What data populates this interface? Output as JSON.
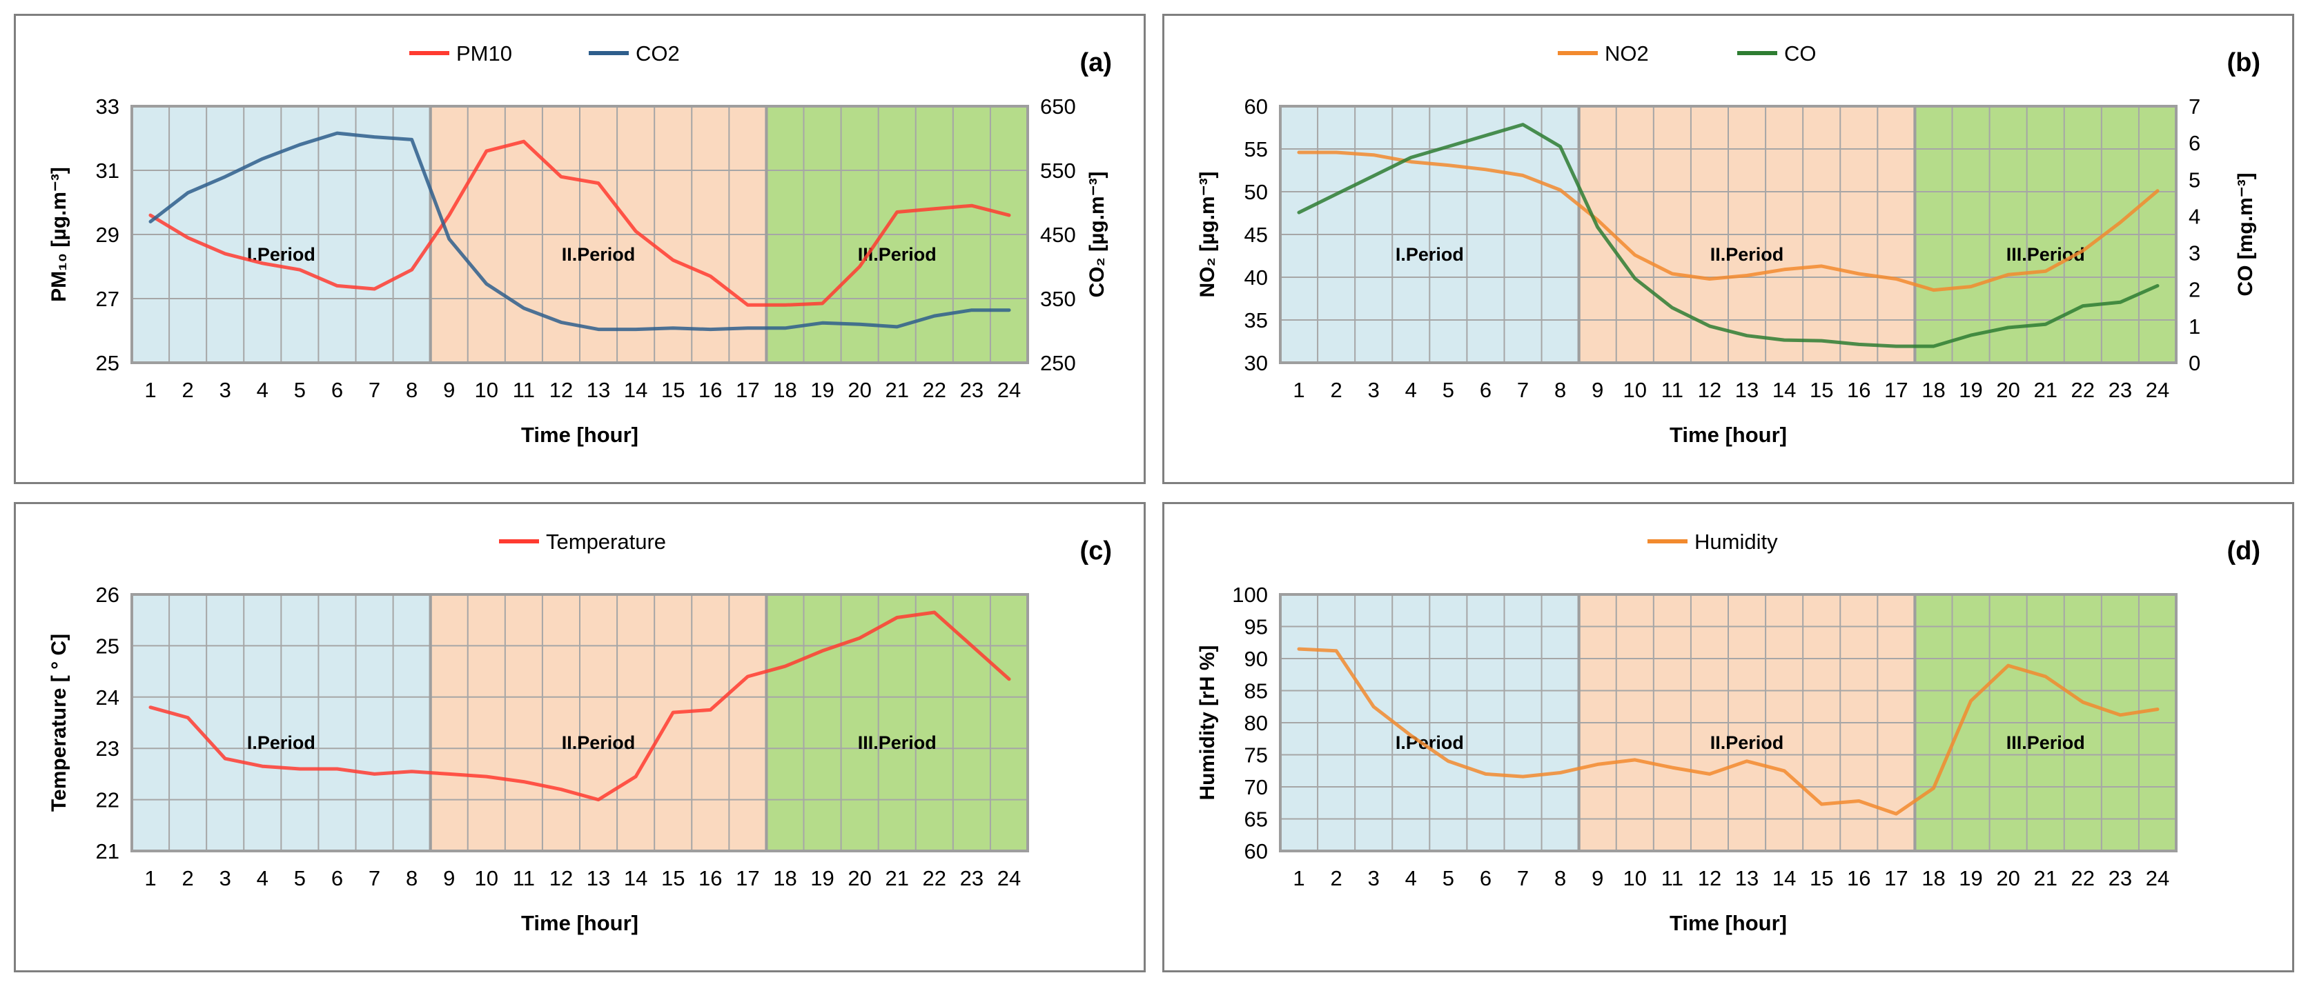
{
  "colors": {
    "period1": "#d6eaf0",
    "period2": "#fad9bf",
    "period3": "#b5dc8a",
    "grid": "#a6a6a6",
    "pm10": "#ff3b30",
    "co2": "#2e5e8c",
    "no2": "#f28a2e",
    "co": "#2e7d32",
    "temperature": "#ff3b30",
    "humidity": "#f28a2e"
  },
  "periods": [
    "I.Period",
    "II.Period",
    "III.Period"
  ],
  "chart_data": [
    {
      "type": "line",
      "panel_label": "(a)",
      "xlabel": "Time [hour]",
      "ylabel": "PM₁₀ [µg.m⁻³]",
      "y2label": "CO₂ [µg.m⁻³]",
      "x": [
        1,
        2,
        3,
        4,
        5,
        6,
        7,
        8,
        9,
        10,
        11,
        12,
        13,
        14,
        15,
        16,
        17,
        18,
        19,
        20,
        21,
        22,
        23,
        24
      ],
      "ylim": [
        25,
        33
      ],
      "yticks": [
        25,
        27,
        29,
        31,
        33
      ],
      "y2lim": [
        250,
        650
      ],
      "y2ticks": [
        250,
        350,
        450,
        550,
        650
      ],
      "legend_position": "top-center",
      "grid": true,
      "period_bounds": [
        8,
        17
      ],
      "series": [
        {
          "name": "PM10",
          "axis": "left",
          "values": [
            29.6,
            28.9,
            28.4,
            28.1,
            27.9,
            27.4,
            27.3,
            27.9,
            29.6,
            31.6,
            31.9,
            30.8,
            30.6,
            29.1,
            28.2,
            27.7,
            26.8,
            26.8,
            26.85,
            28.0,
            29.7,
            29.8,
            29.9,
            29.6
          ]
        },
        {
          "name": "CO2",
          "axis": "right",
          "values": [
            470,
            515,
            540,
            568,
            590,
            608,
            602,
            598,
            443,
            373,
            335,
            313,
            302,
            302,
            304,
            302,
            304,
            304,
            312,
            310,
            306,
            323,
            332,
            332
          ]
        }
      ]
    },
    {
      "type": "line",
      "panel_label": "(b)",
      "xlabel": "Time [hour]",
      "ylabel": "NO₂ [µg.m⁻³]",
      "y2label": "CO [mg.m⁻³]",
      "x": [
        1,
        2,
        3,
        4,
        5,
        6,
        7,
        8,
        9,
        10,
        11,
        12,
        13,
        14,
        15,
        16,
        17,
        18,
        19,
        20,
        21,
        22,
        23,
        24
      ],
      "ylim": [
        30,
        60
      ],
      "yticks": [
        30,
        35,
        40,
        45,
        50,
        55,
        60
      ],
      "y2lim": [
        0,
        7
      ],
      "y2ticks": [
        0,
        1,
        2,
        3,
        4,
        5,
        6,
        7
      ],
      "legend_position": "top-center",
      "grid": true,
      "period_bounds": [
        8,
        17
      ],
      "series": [
        {
          "name": "NO2",
          "axis": "left",
          "values": [
            54.6,
            54.6,
            54.3,
            53.5,
            53.1,
            52.6,
            51.9,
            50.2,
            46.7,
            42.6,
            40.4,
            39.8,
            40.2,
            40.9,
            41.3,
            40.4,
            39.8,
            38.5,
            38.9,
            40.3,
            40.7,
            43.1,
            46.4,
            50.1
          ]
        },
        {
          "name": "CO",
          "axis": "right",
          "values": [
            4.1,
            4.6,
            5.1,
            5.6,
            5.9,
            6.2,
            6.5,
            5.9,
            3.7,
            2.3,
            1.5,
            1.0,
            0.74,
            0.62,
            0.6,
            0.5,
            0.45,
            0.45,
            0.75,
            0.96,
            1.05,
            1.55,
            1.65,
            2.1
          ]
        }
      ]
    },
    {
      "type": "line",
      "panel_label": "(c)",
      "xlabel": "Time [hour]",
      "ylabel": "Temperature  [ ° C]",
      "x": [
        1,
        2,
        3,
        4,
        5,
        6,
        7,
        8,
        9,
        10,
        11,
        12,
        13,
        14,
        15,
        16,
        17,
        18,
        19,
        20,
        21,
        22,
        23,
        24
      ],
      "ylim": [
        21,
        26
      ],
      "yticks": [
        21,
        22,
        23,
        24,
        25,
        26
      ],
      "legend_position": "top-center",
      "grid": true,
      "period_bounds": [
        8,
        17
      ],
      "series": [
        {
          "name": "Temperature",
          "axis": "left",
          "values": [
            23.8,
            23.6,
            22.8,
            22.65,
            22.6,
            22.6,
            22.5,
            22.55,
            22.5,
            22.45,
            22.35,
            22.2,
            22.0,
            22.45,
            23.7,
            23.75,
            24.4,
            24.6,
            24.9,
            25.15,
            25.55,
            25.65,
            25.0,
            24.35
          ]
        }
      ]
    },
    {
      "type": "line",
      "panel_label": "(d)",
      "xlabel": "Time [hour]",
      "ylabel": "Humidity  [rH %]",
      "x": [
        1,
        2,
        3,
        4,
        5,
        6,
        7,
        8,
        9,
        10,
        11,
        12,
        13,
        14,
        15,
        16,
        17,
        18,
        19,
        20,
        21,
        22,
        23,
        24
      ],
      "ylim": [
        60,
        100
      ],
      "yticks": [
        60,
        65,
        70,
        75,
        80,
        85,
        90,
        95,
        100
      ],
      "legend_position": "top-center",
      "grid": true,
      "period_bounds": [
        8,
        17
      ],
      "series": [
        {
          "name": "Humidity",
          "axis": "left",
          "values": [
            91.5,
            91.2,
            82.5,
            78.0,
            74.0,
            72.0,
            71.6,
            72.2,
            73.5,
            74.2,
            73.0,
            72.0,
            74.0,
            72.5,
            67.3,
            67.8,
            65.8,
            69.8,
            83.4,
            88.9,
            87.2,
            83.2,
            81.2,
            82.1
          ]
        }
      ]
    }
  ]
}
